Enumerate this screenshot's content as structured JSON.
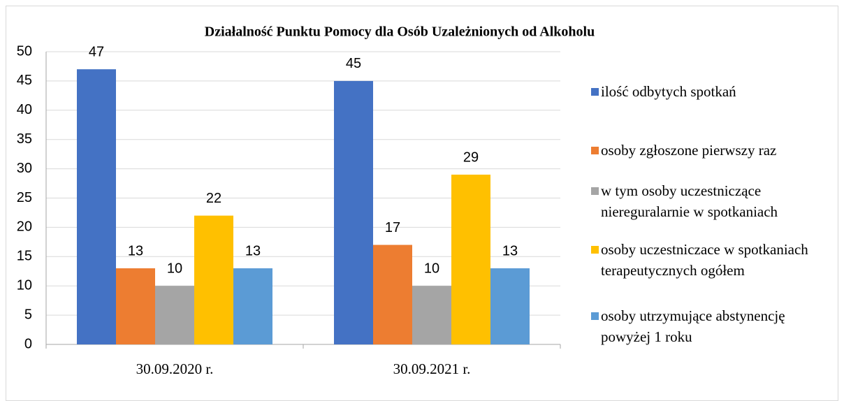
{
  "chart_data": {
    "type": "bar",
    "title": "Działalność Punktu Pomocy dla Osób Uzależnionych od Alkoholu",
    "categories": [
      "30.09.2020 r.",
      "30.09.2021 r."
    ],
    "series": [
      {
        "name": "ilość odbytych spotkań",
        "color": "#4472c4",
        "values": [
          47,
          45
        ]
      },
      {
        "name": "osoby zgłoszone pierwszy raz",
        "color": "#ed7d31",
        "values": [
          13,
          17
        ]
      },
      {
        "name": "w tym osoby uczestniczące niereguralarnie w spotkaniach",
        "color": "#a5a5a5",
        "values": [
          10,
          10
        ]
      },
      {
        "name": "osoby uczestniczace w spotkaniach terapeutycznych ogółem",
        "color": "#ffc000",
        "values": [
          22,
          29
        ]
      },
      {
        "name": "osoby utrzymujące abstynencję powyżej 1 roku",
        "color": "#5b9bd5",
        "values": [
          13,
          13
        ]
      }
    ],
    "ylim": [
      0,
      50
    ],
    "yticks": [
      0,
      5,
      10,
      15,
      20,
      25,
      30,
      35,
      40,
      45,
      50
    ],
    "grid": true,
    "legend": "right"
  }
}
